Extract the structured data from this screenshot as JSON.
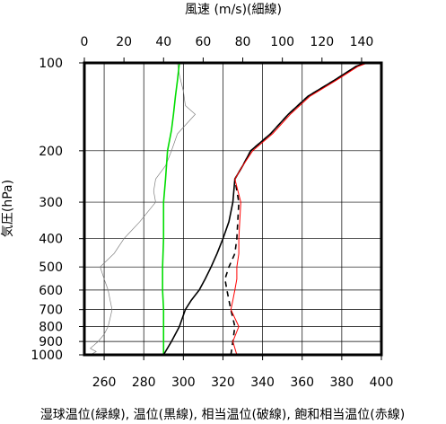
{
  "chart_data": {
    "type": "line",
    "top_axis": {
      "label": "風速 (m/s)(細線)",
      "range": [
        0,
        150
      ],
      "ticks": [
        0,
        20,
        40,
        60,
        80,
        100,
        120,
        140
      ]
    },
    "bottom_axis": {
      "range": [
        250,
        400
      ],
      "ticks": [
        260,
        280,
        300,
        320,
        340,
        360,
        380,
        400
      ]
    },
    "left_axis": {
      "label": "気圧(hPa)",
      "scale": "log",
      "reversed": true,
      "range": [
        1000,
        100
      ],
      "ticks": [
        100,
        200,
        300,
        400,
        500,
        600,
        700,
        800,
        900,
        1000
      ]
    },
    "caption": "湿球温位(緑線), 温位(黒線), 相当温位(破線), 飽和相当温位(赤線)",
    "grid": true,
    "series": [
      {
        "key": "wind",
        "axis": "top",
        "color": "#808080",
        "style": "thin",
        "points": [
          [
            3,
            1000
          ],
          [
            6,
            975
          ],
          [
            3,
            950
          ],
          [
            5,
            925
          ],
          [
            7,
            900
          ],
          [
            10,
            850
          ],
          [
            12,
            800
          ],
          [
            13,
            750
          ],
          [
            14,
            700
          ],
          [
            13,
            650
          ],
          [
            12,
            600
          ],
          [
            10,
            550
          ],
          [
            8,
            500
          ],
          [
            15,
            450
          ],
          [
            20,
            400
          ],
          [
            28,
            350
          ],
          [
            36,
            300
          ],
          [
            35,
            275
          ],
          [
            36,
            250
          ],
          [
            41,
            225
          ],
          [
            44,
            200
          ],
          [
            47,
            175
          ],
          [
            56,
            150
          ],
          [
            51,
            140
          ],
          [
            50,
            125
          ],
          [
            48,
            110
          ],
          [
            47,
            100
          ]
        ]
      },
      {
        "key": "wet_bulb_potential_temperature",
        "axis": "bottom",
        "color": "#00dd00",
        "style": "solid",
        "points": [
          [
            290,
            1000
          ],
          [
            290,
            900
          ],
          [
            290,
            800
          ],
          [
            290,
            700
          ],
          [
            289.5,
            600
          ],
          [
            289.5,
            500
          ],
          [
            290,
            400
          ],
          [
            290,
            300
          ],
          [
            291,
            250
          ],
          [
            292,
            200
          ],
          [
            294,
            170
          ],
          [
            295,
            150
          ],
          [
            296,
            130
          ],
          [
            297,
            115
          ],
          [
            298,
            100
          ]
        ]
      },
      {
        "key": "potential_temperature",
        "axis": "bottom",
        "color": "#000000",
        "style": "solid",
        "points": [
          [
            290,
            1000
          ],
          [
            294,
            900
          ],
          [
            298,
            800
          ],
          [
            301,
            700
          ],
          [
            304,
            650
          ],
          [
            308,
            600
          ],
          [
            311,
            550
          ],
          [
            314,
            500
          ],
          [
            317,
            450
          ],
          [
            320,
            400
          ],
          [
            323,
            350
          ],
          [
            325,
            300
          ],
          [
            326,
            250
          ],
          [
            330,
            225
          ],
          [
            334,
            200
          ],
          [
            344,
            175
          ],
          [
            353,
            150
          ],
          [
            363,
            130
          ],
          [
            376,
            115
          ],
          [
            387,
            103
          ],
          [
            392,
            100
          ]
        ]
      },
      {
        "key": "equivalent_potential_temperature",
        "axis": "bottom",
        "color": "#000000",
        "style": "dashed",
        "points": [
          [
            324,
            1000
          ],
          [
            325,
            900
          ],
          [
            326,
            800
          ],
          [
            324,
            700
          ],
          [
            323,
            650
          ],
          [
            322,
            600
          ],
          [
            321,
            550
          ],
          [
            323,
            500
          ],
          [
            326,
            450
          ],
          [
            327,
            400
          ],
          [
            328,
            300
          ],
          [
            326,
            250
          ],
          [
            330,
            225
          ],
          [
            334,
            200
          ],
          [
            344,
            175
          ],
          [
            353,
            150
          ],
          [
            363,
            130
          ],
          [
            376,
            115
          ],
          [
            387,
            103
          ],
          [
            392,
            100
          ]
        ]
      },
      {
        "key": "saturated_equivalent_potential_temperature",
        "axis": "bottom",
        "color": "#ff0000",
        "style": "solid",
        "points": [
          [
            327,
            1000
          ],
          [
            325,
            900
          ],
          [
            328,
            800
          ],
          [
            324,
            700
          ],
          [
            325,
            650
          ],
          [
            326,
            600
          ],
          [
            327,
            550
          ],
          [
            327,
            500
          ],
          [
            328,
            450
          ],
          [
            328,
            400
          ],
          [
            329,
            300
          ],
          [
            326,
            250
          ],
          [
            330,
            225
          ],
          [
            335,
            200
          ],
          [
            345,
            175
          ],
          [
            354,
            150
          ],
          [
            364,
            130
          ],
          [
            377,
            115
          ],
          [
            388,
            103
          ],
          [
            393,
            100
          ]
        ]
      }
    ]
  }
}
